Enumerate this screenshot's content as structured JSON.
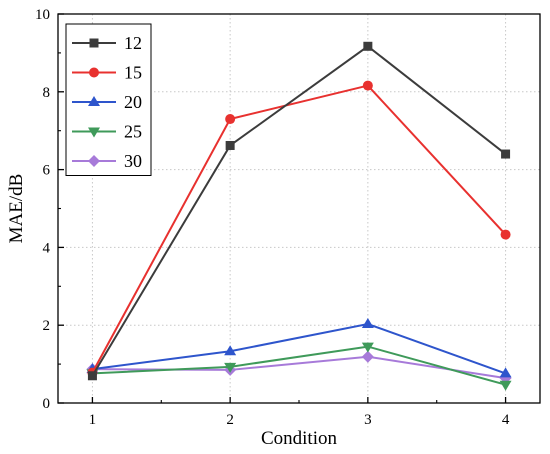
{
  "chart_data": {
    "type": "line",
    "xlabel": "Condition",
    "ylabel": "MAE/dB",
    "x": [
      1,
      2,
      3,
      4
    ],
    "xlim": [
      0.75,
      4.25
    ],
    "ylim": [
      0,
      10
    ],
    "xticks": [
      "1",
      "2",
      "3",
      "4"
    ],
    "yticks": [
      "0",
      "2",
      "4",
      "6",
      "8",
      "10"
    ],
    "grid": true,
    "legend_position": "top-left",
    "series": [
      {
        "name": "12",
        "values": [
          0.7,
          6.62,
          9.17,
          6.4
        ],
        "color": "#3c3c3c",
        "marker": "square"
      },
      {
        "name": "15",
        "values": [
          0.78,
          7.3,
          8.16,
          4.33
        ],
        "color": "#e8312f",
        "marker": "circle"
      },
      {
        "name": "20",
        "values": [
          0.87,
          1.33,
          2.03,
          0.76
        ],
        "color": "#2e55cc",
        "marker": "triangle-up"
      },
      {
        "name": "25",
        "values": [
          0.76,
          0.93,
          1.45,
          0.47
        ],
        "color": "#3f9a5a",
        "marker": "triangle-down"
      },
      {
        "name": "30",
        "values": [
          0.87,
          0.85,
          1.19,
          0.64
        ],
        "color": "#a77ad9",
        "marker": "diamond"
      }
    ]
  }
}
